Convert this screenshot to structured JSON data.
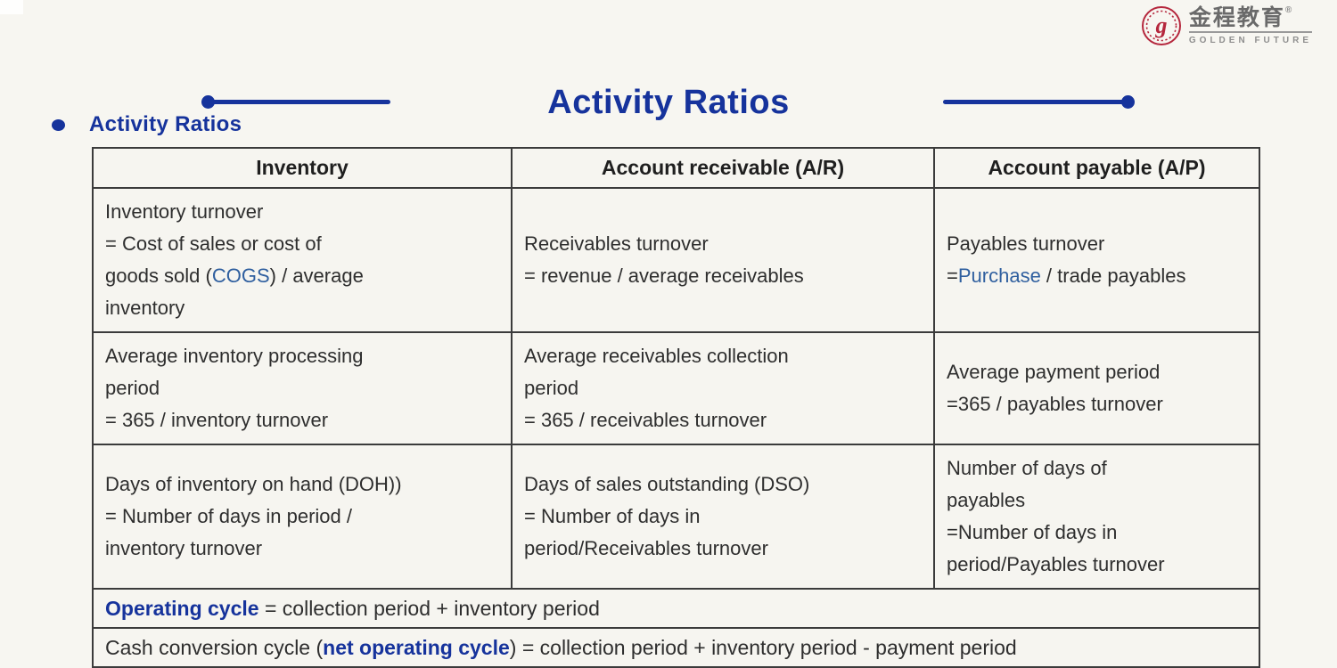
{
  "colors": {
    "deep_blue": "#16339c",
    "link_blue": "#2f5f9f",
    "ink": "#2e2e2e",
    "border": "#3b3b3b",
    "bg": "#f7f6f1",
    "seal_red": "#b5273d"
  },
  "logo": {
    "brand_cn": "金程教育",
    "registered": "®",
    "brand_en": "GOLDEN FUTURE",
    "seal_letter": "g"
  },
  "title": "Activity Ratios",
  "section_heading": "Activity Ratios",
  "table": {
    "headers": [
      "Inventory",
      "Account receivable (A/R)",
      "Account payable (A/P)"
    ],
    "rows": [
      {
        "cells": [
          {
            "segments": [
              {
                "text": "Inventory turnover\n= Cost of sales or cost of\ngoods sold (",
                "style": "normal"
              },
              {
                "text": "COGS",
                "style": "blue"
              },
              {
                "text": ") / average\ninventory",
                "style": "normal"
              }
            ]
          },
          {
            "segments": [
              {
                "text": "Receivables turnover\n= revenue / average receivables",
                "style": "normal"
              }
            ]
          },
          {
            "segments": [
              {
                "text": "Payables turnover\n=",
                "style": "normal"
              },
              {
                "text": "Purchase",
                "style": "blue"
              },
              {
                "text": " / trade payables",
                "style": "normal"
              }
            ]
          }
        ]
      },
      {
        "cells": [
          {
            "segments": [
              {
                "text": "Average inventory processing\nperiod\n= 365 / inventory turnover",
                "style": "normal"
              }
            ]
          },
          {
            "segments": [
              {
                "text": "Average receivables collection\nperiod\n= 365 / receivables turnover",
                "style": "normal"
              }
            ]
          },
          {
            "segments": [
              {
                "text": "Average payment period\n=365 / payables turnover",
                "style": "normal"
              }
            ]
          }
        ]
      },
      {
        "cells": [
          {
            "segments": [
              {
                "text": "Days of inventory on hand (DOH))\n= Number of days in period /\ninventory turnover",
                "style": "normal"
              }
            ]
          },
          {
            "segments": [
              {
                "text": "Days of sales outstanding (DSO)\n= Number of days in\nperiod/Receivables turnover",
                "style": "normal"
              }
            ]
          },
          {
            "segments": [
              {
                "text": "Number of days of\npayables\n=Number of days in\nperiod/Payables turnover",
                "style": "normal"
              }
            ]
          }
        ]
      }
    ],
    "footer_rows": [
      {
        "segments": [
          {
            "text": "Operating cycle",
            "style": "boldblue"
          },
          {
            "text": " = collection period + inventory period",
            "style": "normal"
          }
        ]
      },
      {
        "segments": [
          {
            "text": "Cash conversion cycle (",
            "style": "normal"
          },
          {
            "text": "net operating cycle",
            "style": "boldblue"
          },
          {
            "text": ") = collection period + inventory period - payment period",
            "style": "normal"
          }
        ]
      }
    ]
  }
}
